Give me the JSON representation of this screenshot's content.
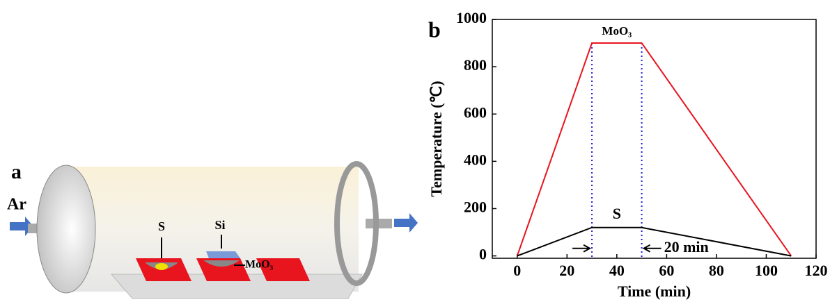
{
  "panel_a": {
    "label": "a",
    "gas": "Ar",
    "labels": {
      "s": "S",
      "si": "Si",
      "moo3": "MoO₃"
    }
  },
  "chart_data": {
    "type": "line",
    "panel_label": "b",
    "x_label": "Time (min)",
    "y_label": "Temperature (℃)",
    "x": [
      0,
      30,
      50,
      110
    ],
    "series": [
      {
        "name": "MoO₃",
        "color": "#e8141e",
        "values": [
          0,
          900,
          900,
          0
        ]
      },
      {
        "name": "S",
        "color": "#000000",
        "values": [
          0,
          120,
          120,
          0
        ]
      }
    ],
    "vlines": [
      30,
      50
    ],
    "vline_color": "#1f1fd8",
    "annotation": "20 min",
    "xlim": [
      -10,
      120
    ],
    "xticks": [
      0,
      20,
      40,
      60,
      80,
      100,
      120
    ],
    "ylim": [
      -10,
      1000
    ],
    "yticks": [
      0,
      200,
      400,
      600,
      800,
      1000
    ]
  }
}
